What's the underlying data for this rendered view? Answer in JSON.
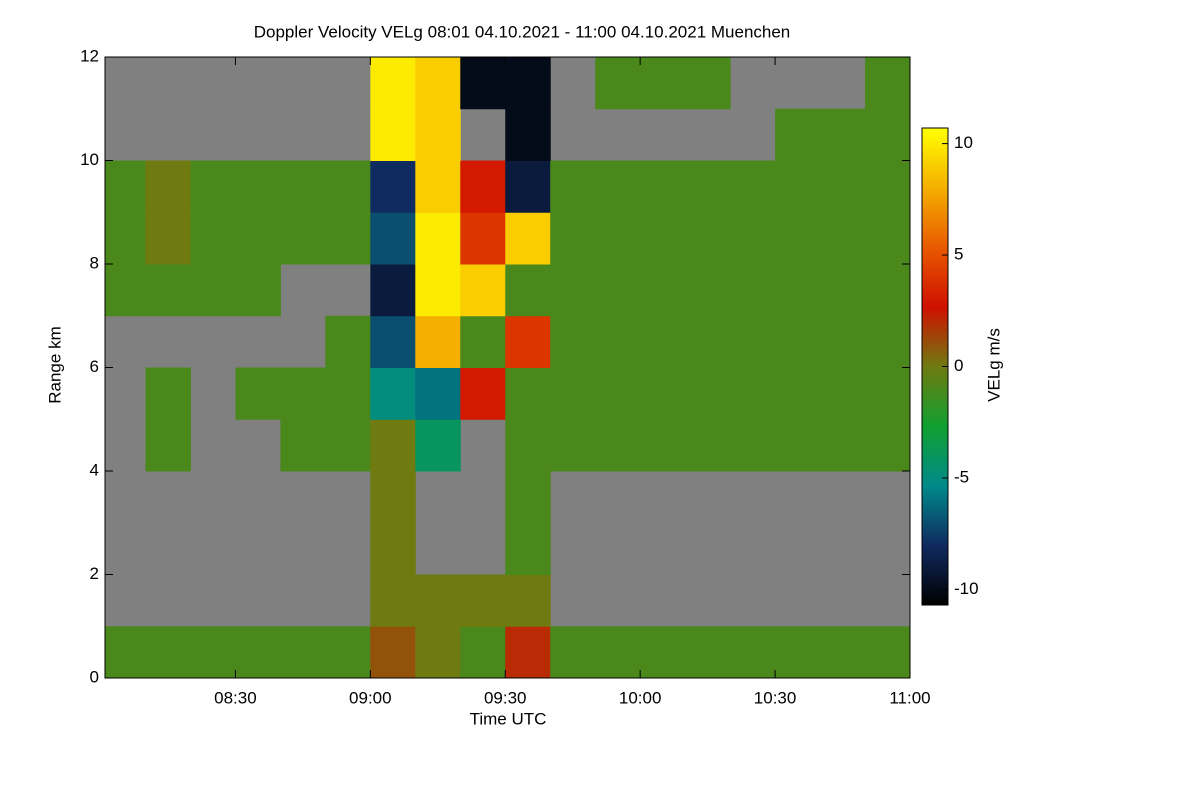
{
  "chart_data": {
    "type": "heatmap",
    "title": "Doppler Velocity VELg   08:01 04.10.2021 - 11:00 04.10.2021 Muenchen",
    "x_label": "Time UTC",
    "y_label": "Range km",
    "colorbar_label": "VELg m/s",
    "xlim": [
      "08:01",
      "11:00"
    ],
    "xticks": [
      "08:30",
      "09:00",
      "09:30",
      "10:00",
      "10:30",
      "11:00"
    ],
    "ylim": [
      0,
      12
    ],
    "yticks": [
      0,
      2,
      4,
      6,
      8,
      10,
      12
    ],
    "zlim": [
      -10.7,
      10.7
    ],
    "zticks": [
      -10,
      -5,
      0,
      5,
      10
    ],
    "colorscale": [
      "#000000",
      "#102a60",
      "#008a8a",
      "#10a030",
      "#6f7a10",
      "#d01000",
      "#e85a00",
      "#f5b000",
      "#ffff00"
    ],
    "missing_color": "#808080",
    "x_bins": [
      "08:01",
      "08:10",
      "08:20",
      "08:30",
      "08:40",
      "08:50",
      "09:00",
      "09:10",
      "09:20",
      "09:30",
      "09:40",
      "09:50",
      "10:00",
      "10:10",
      "10:20",
      "10:30",
      "10:40",
      "10:50",
      "11:00"
    ],
    "y_bins": [
      0,
      1,
      2,
      3,
      4,
      5,
      6,
      7,
      8,
      9,
      10,
      11,
      12
    ],
    "z": [
      [
        -1,
        -1,
        -1,
        -1,
        -1,
        -1,
        1,
        0,
        -1,
        2,
        -1,
        -1,
        -1,
        -1,
        -1,
        -1,
        -1,
        -1
      ],
      [
        null,
        null,
        null,
        null,
        null,
        null,
        0,
        0,
        0,
        0,
        null,
        null,
        null,
        null,
        null,
        null,
        null,
        null
      ],
      [
        null,
        null,
        null,
        null,
        null,
        null,
        0,
        null,
        null,
        -1,
        null,
        null,
        null,
        null,
        null,
        null,
        null,
        null
      ],
      [
        null,
        null,
        null,
        null,
        null,
        null,
        0,
        null,
        null,
        -1,
        null,
        null,
        null,
        null,
        null,
        null,
        null,
        null
      ],
      [
        null,
        -1,
        null,
        null,
        -1,
        -1,
        0,
        -4,
        null,
        -1,
        -1,
        -1,
        -1,
        -1,
        -1,
        -1,
        -1,
        -1
      ],
      [
        null,
        -1,
        null,
        -1,
        -1,
        -1,
        -5,
        -6,
        3,
        -1,
        -1,
        -1,
        -1,
        -1,
        -1,
        -1,
        -1,
        -1
      ],
      [
        null,
        null,
        null,
        null,
        null,
        -1,
        -7,
        8,
        -1,
        4,
        -1,
        -1,
        -1,
        -1,
        -1,
        -1,
        -1,
        -1
      ],
      [
        -1,
        -1,
        -1,
        -1,
        null,
        null,
        -9,
        10,
        9,
        -1,
        -1,
        -1,
        -1,
        -1,
        -1,
        -1,
        -1,
        -1
      ],
      [
        -1,
        0,
        -1,
        -1,
        -1,
        -1,
        -7,
        10,
        4,
        9,
        -1,
        -1,
        -1,
        -1,
        -1,
        -1,
        -1,
        -1
      ],
      [
        -1,
        0,
        -1,
        -1,
        -1,
        -1,
        -8,
        9,
        3,
        -9,
        -1,
        -1,
        -1,
        -1,
        -1,
        -1,
        -1,
        -1
      ],
      [
        null,
        null,
        null,
        null,
        null,
        null,
        10,
        9,
        null,
        -10,
        null,
        null,
        null,
        null,
        null,
        -1,
        -1,
        -1
      ],
      [
        null,
        null,
        null,
        null,
        null,
        null,
        10,
        9,
        -10,
        -10,
        null,
        -1,
        -1,
        -1,
        null,
        null,
        null,
        -1
      ]
    ]
  }
}
